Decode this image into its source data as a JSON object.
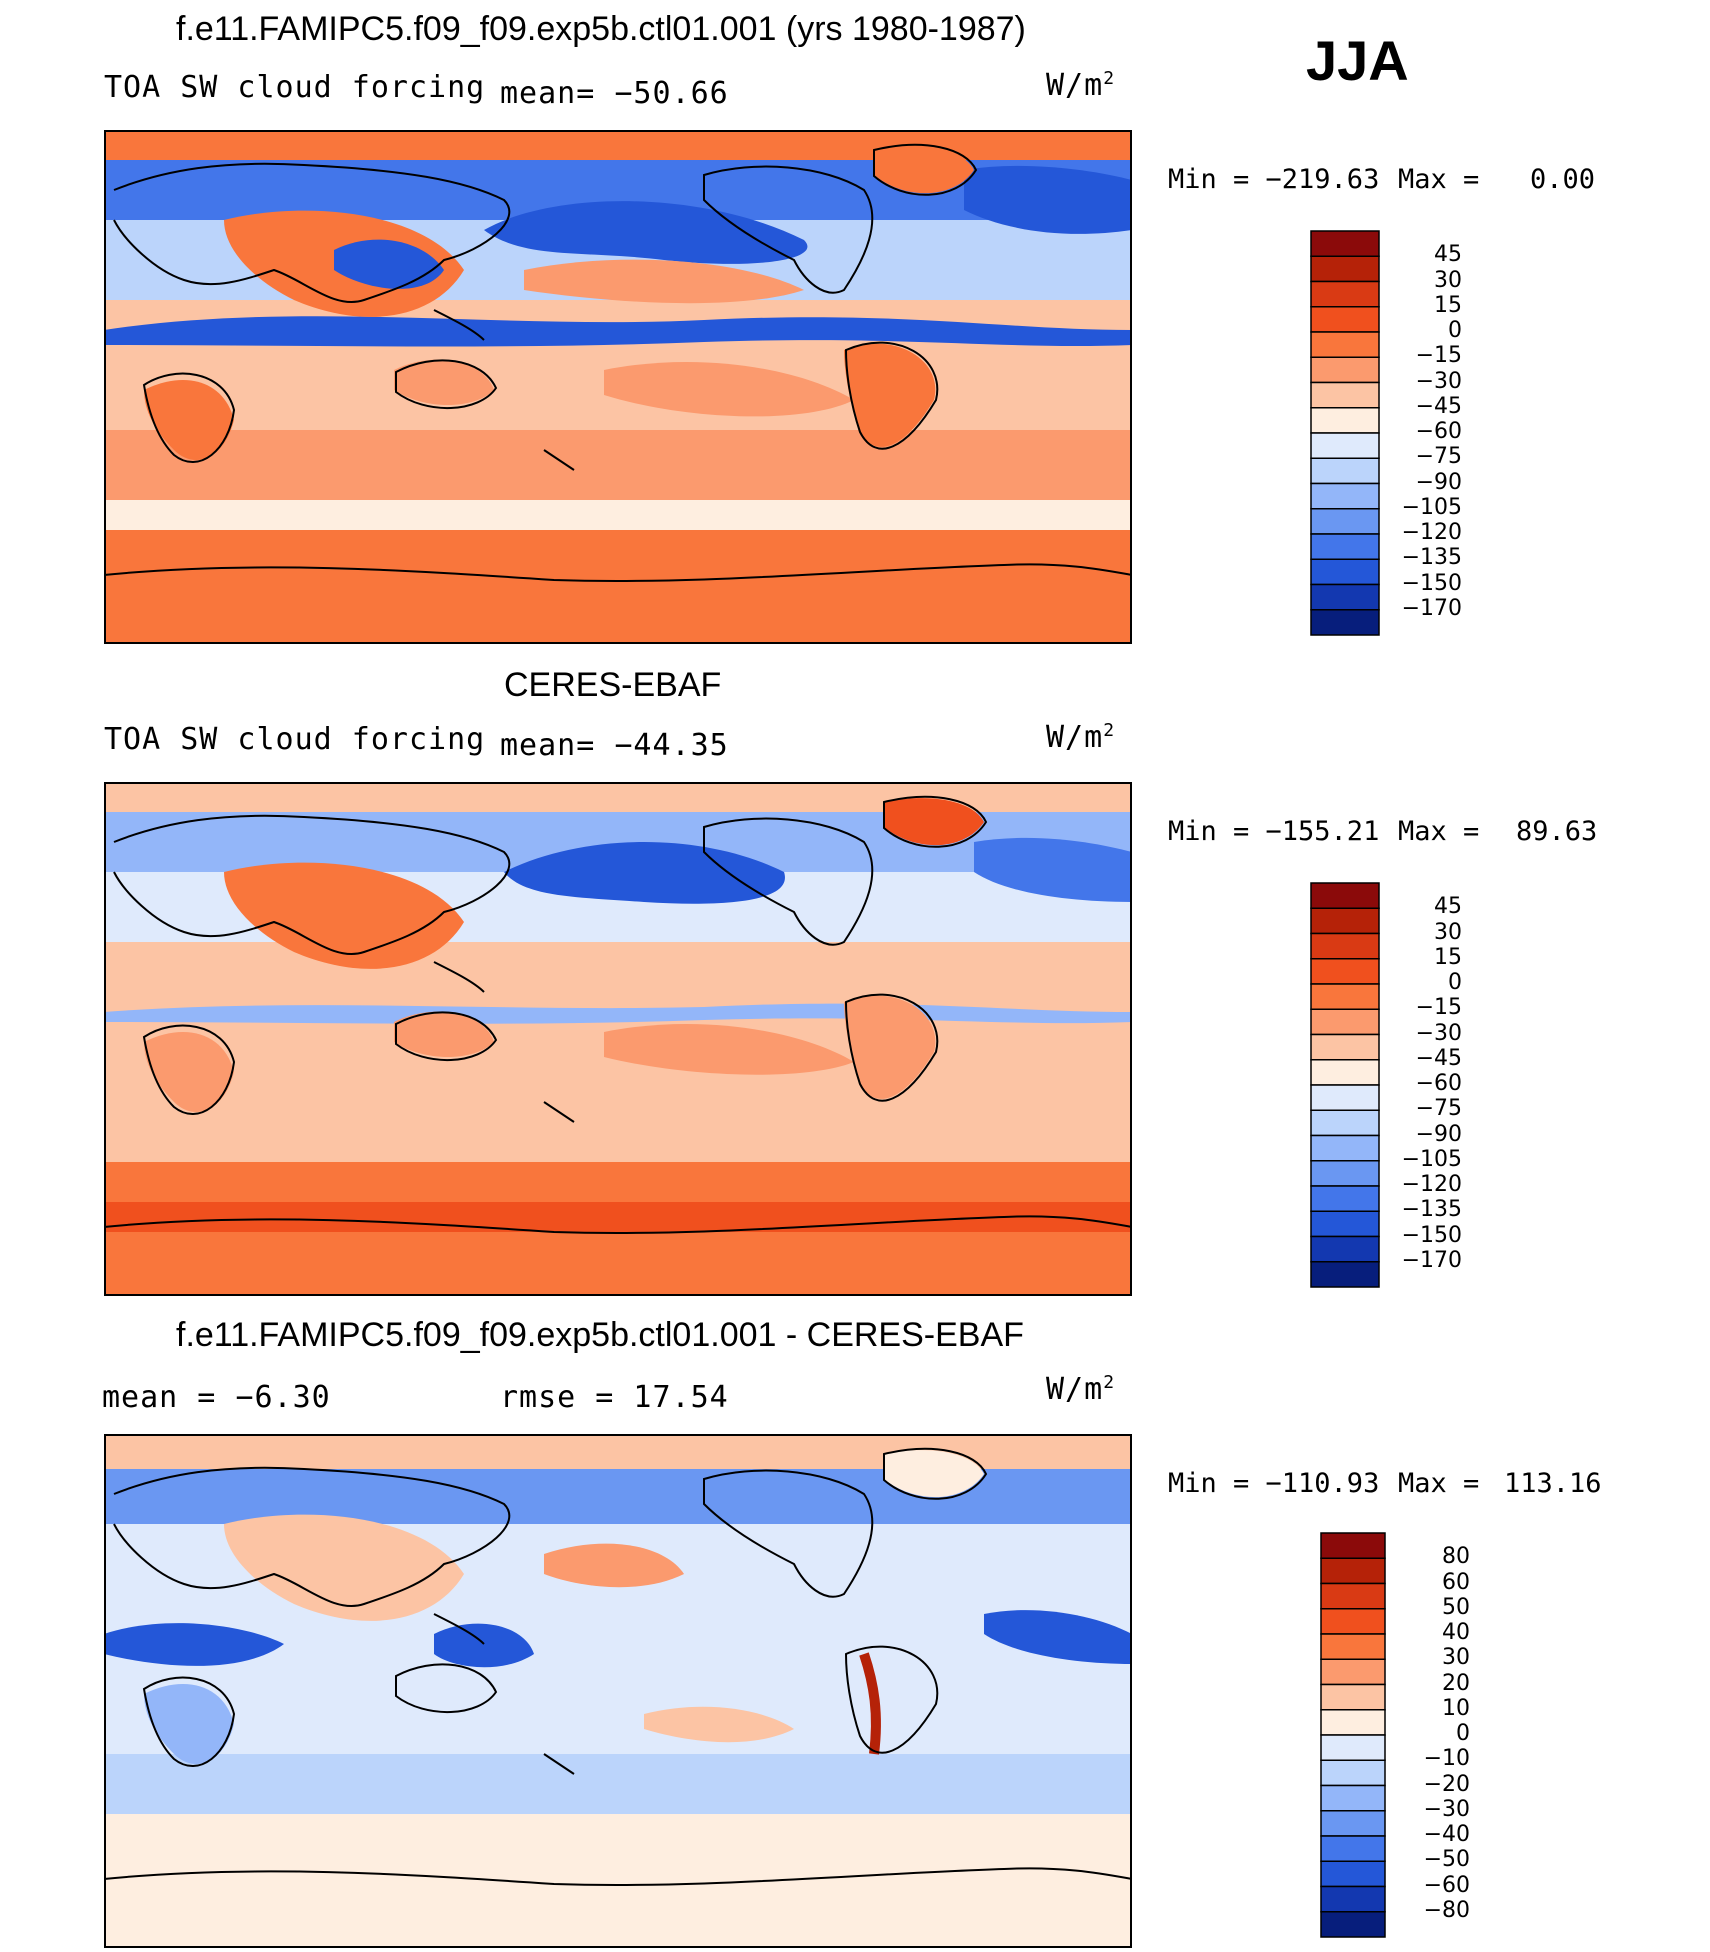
{
  "season": "JJA",
  "panels": [
    {
      "title": "f.e11.FAMIPC5.f09_f09.exp5b.ctl01.001 (yrs 1980-1987)",
      "left_label": "TOA SW cloud forcing",
      "mean_text": "mean= −50.66",
      "units_base": "W/m",
      "units_exp": "2",
      "min_label": "Min = −219.63",
      "max_label": "Max =",
      "max_value": "0.00",
      "colorbar": {
        "ticks": [
          "45",
          "30",
          "15",
          "0",
          "−15",
          "−30",
          "−45",
          "−60",
          "−75",
          "−90",
          "−105",
          "−120",
          "−135",
          "−150",
          "−170"
        ],
        "colors": [
          "#8b0a0a",
          "#b52208",
          "#d93a14",
          "#f0501e",
          "#f9763c",
          "#fb9a6e",
          "#fcc4a4",
          "#feeee0",
          "#dfeafc",
          "#bbd4fb",
          "#93b6f9",
          "#6a97f2",
          "#4376ea",
          "#2457d8",
          "#1338b0",
          "#071e7c"
        ]
      }
    },
    {
      "title": "CERES-EBAF",
      "left_label": "TOA SW cloud forcing",
      "mean_text": "mean= −44.35",
      "units_base": "W/m",
      "units_exp": "2",
      "min_label": "Min = −155.21",
      "max_label": "Max =",
      "max_value": "89.63",
      "colorbar": {
        "ticks": [
          "45",
          "30",
          "15",
          "0",
          "−15",
          "−30",
          "−45",
          "−60",
          "−75",
          "−90",
          "−105",
          "−120",
          "−135",
          "−150",
          "−170"
        ],
        "colors": [
          "#8b0a0a",
          "#b52208",
          "#d93a14",
          "#f0501e",
          "#f9763c",
          "#fb9a6e",
          "#fcc4a4",
          "#feeee0",
          "#dfeafc",
          "#bbd4fb",
          "#93b6f9",
          "#6a97f2",
          "#4376ea",
          "#2457d8",
          "#1338b0",
          "#071e7c"
        ]
      }
    },
    {
      "title": "f.e11.FAMIPC5.f09_f09.exp5b.ctl01.001 - CERES-EBAF",
      "left_label": "mean =   −6.30",
      "mean_text": "rmse =   17.54",
      "units_base": "W/m",
      "units_exp": "2",
      "min_label": "Min = −110.93",
      "max_label": "Max =",
      "max_value": "113.16",
      "colorbar": {
        "ticks": [
          "80",
          "60",
          "50",
          "40",
          "30",
          "20",
          "10",
          "0",
          "−10",
          "−20",
          "−30",
          "−40",
          "−50",
          "−60",
          "−80"
        ],
        "colors": [
          "#8b0a0a",
          "#b52208",
          "#d93a14",
          "#f0501e",
          "#f9763c",
          "#fb9a6e",
          "#fcc4a4",
          "#feeee0",
          "#dfeafc",
          "#bbd4fb",
          "#93b6f9",
          "#6a97f2",
          "#4376ea",
          "#2457d8",
          "#1338b0",
          "#071e7c"
        ]
      }
    }
  ],
  "map_colors": {
    "ocean_neutral": "#fcc4a4",
    "bg_pale": "#feeee0",
    "orange": "#f9763c",
    "red": "#f0501e",
    "salmon": "#fb9a6e",
    "pale_blue": "#dfeafc",
    "light_blue": "#bbd4fb",
    "mid_blue": "#6a97f2",
    "blue": "#4376ea",
    "deep_blue": "#2457d8",
    "navy": "#1338b0"
  }
}
